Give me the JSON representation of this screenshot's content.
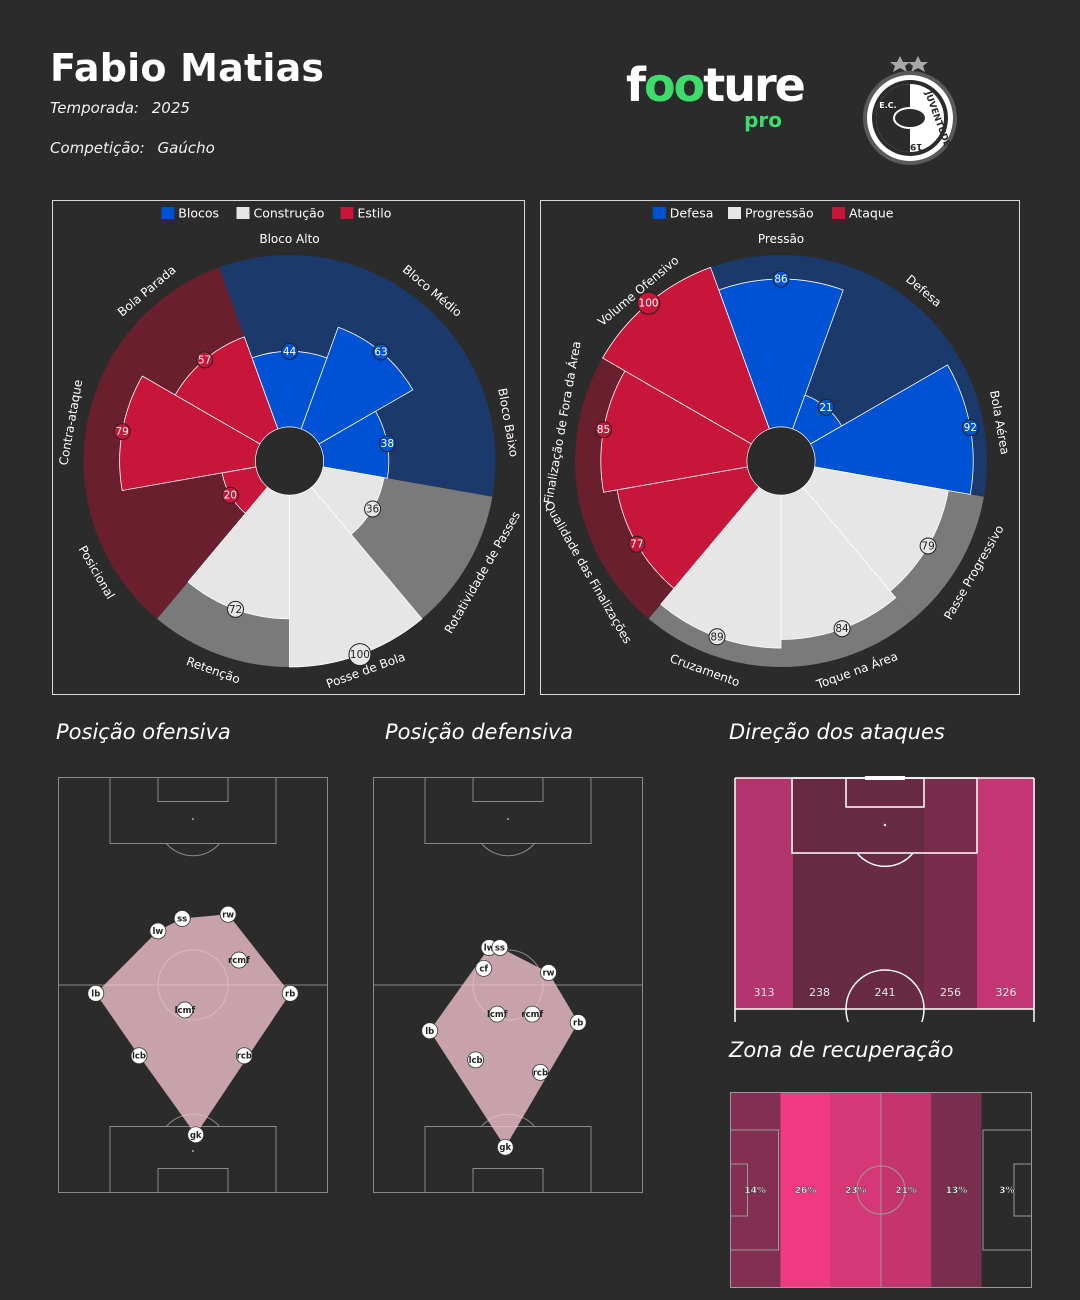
{
  "header": {
    "player_name": "Fabio Matias",
    "season_label": "Temporada:",
    "season_value": "2025",
    "competition_label": "Competição:",
    "competition_value": "Gaúcho",
    "brand_logo": "footure pro",
    "club_crest": "juventude-crest-icon",
    "club_crest_text": "JUVENTUDE",
    "club_crest_year": "1913",
    "club_crest_initials": "E.C."
  },
  "colors": {
    "background": "#2b2b2b",
    "blue_bright": "#0052d4",
    "blue_dark": "#1b3a6b",
    "red_bright": "#c8163a",
    "red_dark": "#6a1f2e",
    "gray_light": "#e6e6e6",
    "gray_dark": "#7a7a7a",
    "brand_green": "#3ddc6c"
  },
  "chart_data": [
    {
      "type": "polar-bar",
      "id": "estilo",
      "legend": [
        "Blocos",
        "Construção",
        "Estilo"
      ],
      "legend_colors": [
        "#0052d4",
        "#e6e6e6",
        "#c8163a"
      ],
      "legend_placement": "top",
      "ylim": [
        0,
        100
      ],
      "categories": [
        "Bloco Alto",
        "Bloco Médio",
        "Bloco Baixo",
        "Rotatividade de Passes",
        "Posse de Bola",
        "Retenção",
        "Posicional",
        "Contra-ataque",
        "Bola Parada"
      ],
      "values": [
        44,
        63,
        38,
        36,
        100,
        72,
        20,
        79,
        57
      ],
      "groups": [
        "Blocos",
        "Blocos",
        "Blocos",
        "Construção",
        "Construção",
        "Construção",
        "Estilo",
        "Estilo",
        "Estilo"
      ]
    },
    {
      "type": "polar-bar",
      "id": "fases",
      "legend": [
        "Defesa",
        "Progressão",
        "Ataque"
      ],
      "legend_colors": [
        "#0052d4",
        "#e6e6e6",
        "#c8163a"
      ],
      "legend_placement": "top",
      "ylim": [
        0,
        100
      ],
      "categories": [
        "Pressão",
        "Defesa",
        "Bola Aérea",
        "Passe Progressivo",
        "Toque na Área",
        "Cruzamento",
        "Qualidade das Finalizações",
        "Finalização de Fora da Área",
        "Volume Ofensivo"
      ],
      "values": [
        86,
        21,
        92,
        79,
        84,
        89,
        77,
        85,
        100
      ],
      "groups": [
        "Defesa",
        "Defesa",
        "Defesa",
        "Progressão",
        "Progressão",
        "Progressão",
        "Ataque",
        "Ataque",
        "Ataque"
      ]
    },
    {
      "type": "scatter",
      "id": "posicao-ofensiva",
      "title": "Posição ofensiva",
      "points": [
        {
          "label": "lw",
          "x": 37,
          "y": 63
        },
        {
          "label": "ss",
          "x": 46,
          "y": 66
        },
        {
          "label": "rw",
          "x": 63,
          "y": 67
        },
        {
          "label": "rcmf",
          "x": 67,
          "y": 56
        },
        {
          "label": "rb",
          "x": 86,
          "y": 48
        },
        {
          "label": "lb",
          "x": 14,
          "y": 48
        },
        {
          "label": "lcmf",
          "x": 47,
          "y": 44
        },
        {
          "label": "lcb",
          "x": 30,
          "y": 33
        },
        {
          "label": "rcb",
          "x": 69,
          "y": 33
        },
        {
          "label": "gk",
          "x": 51,
          "y": 14
        }
      ]
    },
    {
      "type": "scatter",
      "id": "posicao-defensiva",
      "title": "Posição defensiva",
      "points": [
        {
          "label": "lw",
          "x": 43,
          "y": 59
        },
        {
          "label": "ss",
          "x": 47,
          "y": 59
        },
        {
          "label": "cf",
          "x": 41,
          "y": 54
        },
        {
          "label": "rw",
          "x": 65,
          "y": 53
        },
        {
          "label": "lcmf",
          "x": 46,
          "y": 43
        },
        {
          "label": "rcmf",
          "x": 59,
          "y": 43
        },
        {
          "label": "rb",
          "x": 76,
          "y": 41
        },
        {
          "label": "lb",
          "x": 21,
          "y": 39
        },
        {
          "label": "lcb",
          "x": 38,
          "y": 32
        },
        {
          "label": "rcb",
          "x": 62,
          "y": 29
        },
        {
          "label": "gk",
          "x": 49,
          "y": 11
        }
      ]
    },
    {
      "type": "heatmap",
      "id": "direcao-ataques",
      "title": "Direção dos ataques",
      "categories": [
        "lane-1",
        "lane-2",
        "lane-3",
        "lane-4",
        "lane-5"
      ],
      "values": [
        313,
        238,
        241,
        256,
        326
      ],
      "value_labels": [
        "313",
        "238",
        "241",
        "256",
        "326"
      ]
    },
    {
      "type": "heatmap",
      "id": "zona-recuperacao",
      "title": "Zona de recuperação",
      "categories": [
        "zone-1",
        "zone-2",
        "zone-3",
        "zone-4",
        "zone-5",
        "zone-6"
      ],
      "values": [
        14,
        26,
        23,
        21,
        13,
        3
      ],
      "value_labels": [
        "14%",
        "26%",
        "23%",
        "21%",
        "13%",
        "3%"
      ]
    }
  ]
}
